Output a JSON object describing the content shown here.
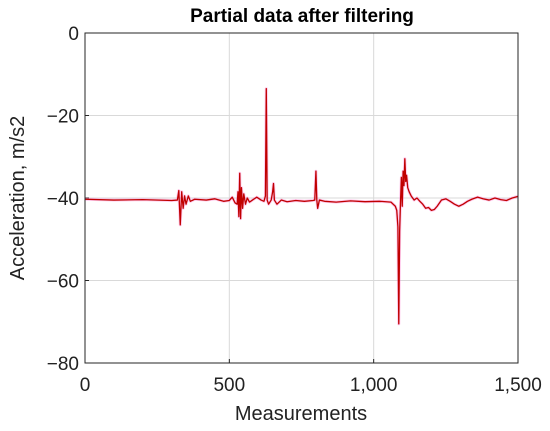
{
  "chart_data": {
    "type": "line",
    "title": "Partial data after filtering",
    "xlabel": "Measurements",
    "ylabel": "Acceleration, m/s2",
    "xlim": [
      0,
      1500
    ],
    "ylim": [
      -80,
      0
    ],
    "x_ticks": [
      0,
      500,
      1000,
      1500
    ],
    "x_tick_labels": [
      "0",
      "500",
      "1,000",
      "1,500"
    ],
    "y_ticks": [
      0,
      -20,
      -40,
      -60,
      -80
    ],
    "y_tick_labels": [
      "0",
      "−20",
      "−40",
      "−60",
      "−80"
    ],
    "grid": true,
    "series": [
      {
        "color": "#c00000",
        "points": [
          [
            0,
            -40.3
          ],
          [
            100,
            -40.5
          ],
          [
            200,
            -40.4
          ],
          [
            300,
            -40.6
          ],
          [
            320,
            -40.5
          ],
          [
            325,
            -38.2
          ],
          [
            330,
            -46.5
          ],
          [
            335,
            -38.5
          ],
          [
            340,
            -42.5
          ],
          [
            345,
            -39.5
          ],
          [
            350,
            -41.5
          ],
          [
            358,
            -39.5
          ],
          [
            365,
            -40.8
          ],
          [
            380,
            -40.3
          ],
          [
            420,
            -40.5
          ],
          [
            450,
            -40.2
          ],
          [
            480,
            -40.8
          ],
          [
            500,
            -40.6
          ],
          [
            510,
            -39.8
          ],
          [
            520,
            -41.2
          ],
          [
            527,
            -41.5
          ],
          [
            530,
            -38.5
          ],
          [
            533,
            -44.5
          ],
          [
            536,
            -34.0
          ],
          [
            539,
            -45.0
          ],
          [
            542,
            -37.5
          ],
          [
            546,
            -42.5
          ],
          [
            550,
            -39.0
          ],
          [
            556,
            -41.5
          ],
          [
            562,
            -40.0
          ],
          [
            570,
            -41.0
          ],
          [
            580,
            -40.5
          ],
          [
            595,
            -39.8
          ],
          [
            610,
            -40.5
          ],
          [
            620,
            -40.8
          ],
          [
            625,
            -39.5
          ],
          [
            628,
            -13.5
          ],
          [
            631,
            -40.5
          ],
          [
            636,
            -41.5
          ],
          [
            645,
            -40.5
          ],
          [
            650,
            -38.5
          ],
          [
            653,
            -36.5
          ],
          [
            656,
            -40.5
          ],
          [
            665,
            -41.5
          ],
          [
            680,
            -40.5
          ],
          [
            700,
            -40.9
          ],
          [
            730,
            -40.6
          ],
          [
            760,
            -40.8
          ],
          [
            790,
            -40.6
          ],
          [
            796,
            -40.5
          ],
          [
            800,
            -33.5
          ],
          [
            803,
            -40.5
          ],
          [
            806,
            -42.5
          ],
          [
            812,
            -40.5
          ],
          [
            830,
            -40.8
          ],
          [
            870,
            -41.0
          ],
          [
            920,
            -40.7
          ],
          [
            970,
            -40.9
          ],
          [
            1020,
            -40.8
          ],
          [
            1060,
            -41.0
          ],
          [
            1075,
            -42.0
          ],
          [
            1080,
            -43.0
          ],
          [
            1084,
            -47.0
          ],
          [
            1087,
            -70.5
          ],
          [
            1090,
            -48.0
          ],
          [
            1093,
            -41.0
          ],
          [
            1096,
            -35.0
          ],
          [
            1099,
            -42.0
          ],
          [
            1102,
            -33.5
          ],
          [
            1105,
            -37.0
          ],
          [
            1108,
            -30.5
          ],
          [
            1111,
            -36.0
          ],
          [
            1114,
            -34.5
          ],
          [
            1118,
            -37.5
          ],
          [
            1123,
            -38.5
          ],
          [
            1130,
            -39.5
          ],
          [
            1140,
            -40.5
          ],
          [
            1150,
            -40.0
          ],
          [
            1160,
            -40.8
          ],
          [
            1170,
            -41.5
          ],
          [
            1180,
            -42.5
          ],
          [
            1190,
            -42.3
          ],
          [
            1200,
            -43.0
          ],
          [
            1210,
            -42.8
          ],
          [
            1220,
            -42.0
          ],
          [
            1235,
            -40.5
          ],
          [
            1250,
            -40.2
          ],
          [
            1265,
            -40.8
          ],
          [
            1280,
            -41.5
          ],
          [
            1295,
            -42.0
          ],
          [
            1310,
            -41.5
          ],
          [
            1325,
            -40.8
          ],
          [
            1340,
            -40.3
          ],
          [
            1360,
            -39.8
          ],
          [
            1380,
            -40.2
          ],
          [
            1400,
            -40.5
          ],
          [
            1420,
            -40.0
          ],
          [
            1440,
            -40.4
          ],
          [
            1460,
            -40.6
          ],
          [
            1480,
            -40.0
          ],
          [
            1500,
            -39.6
          ]
        ]
      }
    ]
  }
}
